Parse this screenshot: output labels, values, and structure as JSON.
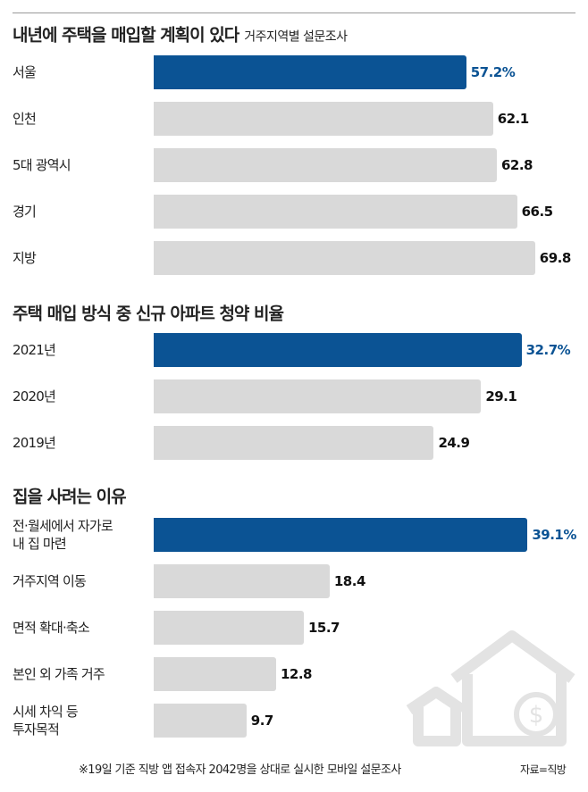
{
  "chart_data": [
    {
      "type": "bar",
      "orientation": "horizontal",
      "title": "내년에 주택을 매입할 계획이 있다",
      "subtitle": "거주지역별 설문조사",
      "categories": [
        "서울",
        "인천",
        "5대 광역시",
        "경기",
        "지방"
      ],
      "values": [
        57.2,
        62.1,
        62.8,
        66.5,
        69.8
      ],
      "value_labels": [
        "57.2%",
        "62.1",
        "62.8",
        "66.5",
        "69.8"
      ],
      "colors": [
        "#0b5394",
        "#d9d9d9",
        "#d9d9d9",
        "#d9d9d9",
        "#d9d9d9"
      ],
      "xlim": [
        0,
        70
      ]
    },
    {
      "type": "bar",
      "orientation": "horizontal",
      "title": "주택 매입 방식 중 신규 아파트 청약 비율",
      "categories": [
        "2021년",
        "2020년",
        "2019년"
      ],
      "values": [
        32.7,
        29.1,
        24.9
      ],
      "value_labels": [
        "32.7%",
        "29.1",
        "24.9"
      ],
      "colors": [
        "#0b5394",
        "#d9d9d9",
        "#d9d9d9"
      ],
      "xlim": [
        0,
        34
      ]
    },
    {
      "type": "bar",
      "orientation": "horizontal",
      "title": "집을 사려는 이유",
      "categories": [
        "전·월세에서 자가로\n내 집 마련",
        "거주지역 이동",
        "면적 확대·축소",
        "본인 외 가족 거주",
        "시세 차익 등\n투자목적"
      ],
      "values": [
        39.1,
        18.4,
        15.7,
        12.8,
        9.7
      ],
      "value_labels": [
        "39.1%",
        "18.4",
        "15.7",
        "12.8",
        "9.7"
      ],
      "colors": [
        "#0b5394",
        "#d9d9d9",
        "#d9d9d9",
        "#d9d9d9",
        "#d9d9d9"
      ],
      "xlim": [
        0,
        40
      ]
    }
  ],
  "footnote": "※19일 기준 직방 앱 접속자 2042명을 상대로 실시한 모바일 설문조사",
  "source": "자료=직방"
}
